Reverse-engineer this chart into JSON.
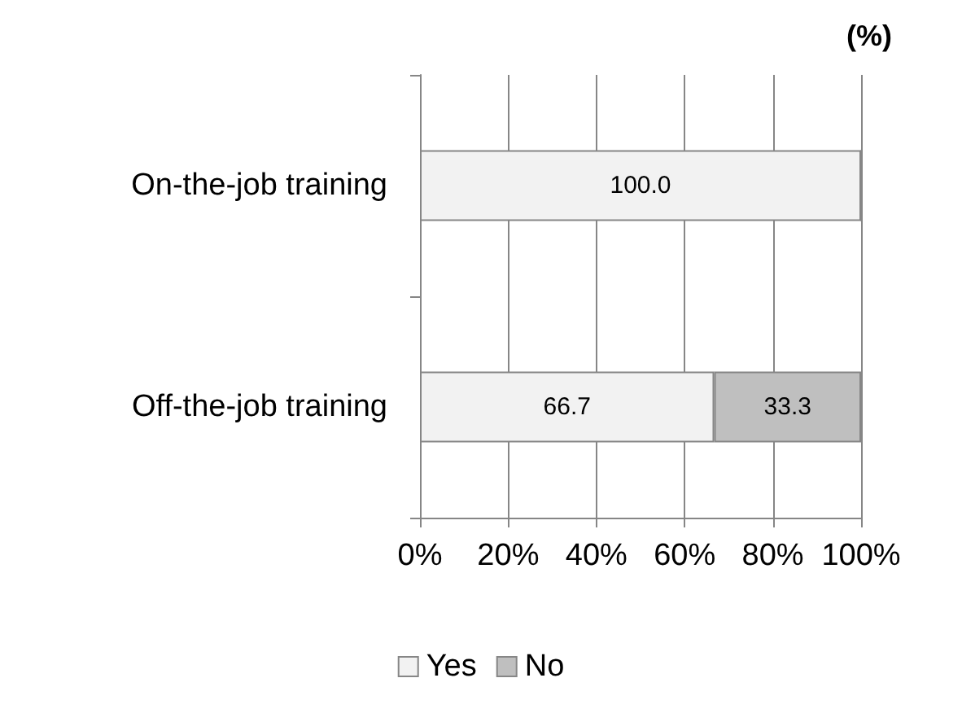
{
  "chart_data": {
    "type": "bar",
    "orientation": "horizontal",
    "stacked": true,
    "title": "(%)",
    "categories": [
      "On-the-job training",
      "Off-the-job training"
    ],
    "series": [
      {
        "name": "Yes",
        "color": "#f2f2f2",
        "values": [
          100.0,
          66.7
        ],
        "value_labels": [
          "100.0",
          "66.7"
        ]
      },
      {
        "name": "No",
        "color": "#bfbfbf",
        "values": [
          0,
          33.3
        ],
        "value_labels": [
          null,
          "33.3"
        ]
      }
    ],
    "xlim": [
      0,
      100
    ],
    "xticks": [
      {
        "value": 0,
        "label": "0%"
      },
      {
        "value": 20,
        "label": "20%"
      },
      {
        "value": 40,
        "label": "40%"
      },
      {
        "value": 60,
        "label": "60%"
      },
      {
        "value": 80,
        "label": "80%"
      },
      {
        "value": 100,
        "label": "100%"
      }
    ],
    "grid": "x",
    "legend": "bottom"
  }
}
